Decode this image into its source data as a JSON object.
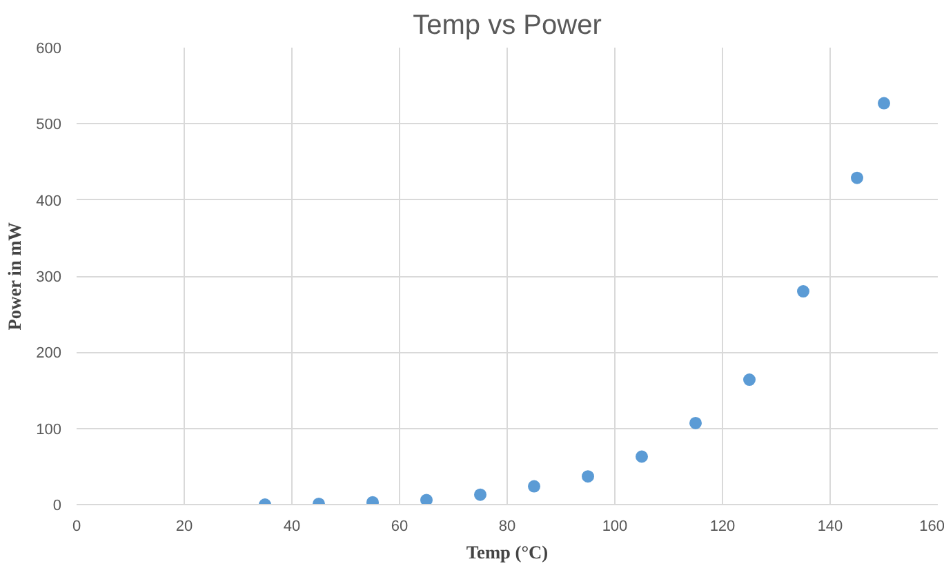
{
  "chart_data": {
    "type": "scatter",
    "title": "Temp vs Power",
    "xlabel": "Temp (°C)",
    "ylabel": "Power in mW",
    "x": [
      35,
      45,
      55,
      65,
      75,
      85,
      95,
      105,
      115,
      125,
      135,
      145,
      150
    ],
    "series": [
      {
        "color": "#5b9bd5",
        "values": [
          0,
          1,
          3,
          6,
          13,
          24,
          37,
          63,
          107,
          164,
          280,
          429,
          527
        ]
      }
    ],
    "xlim": [
      0,
      160
    ],
    "xticks": [
      0,
      20,
      40,
      60,
      80,
      100,
      120,
      140,
      160
    ],
    "ylim": [
      0,
      600
    ],
    "yticks": [
      0,
      100,
      200,
      300,
      400,
      500,
      600
    ],
    "grid": true,
    "marker": "circle"
  }
}
